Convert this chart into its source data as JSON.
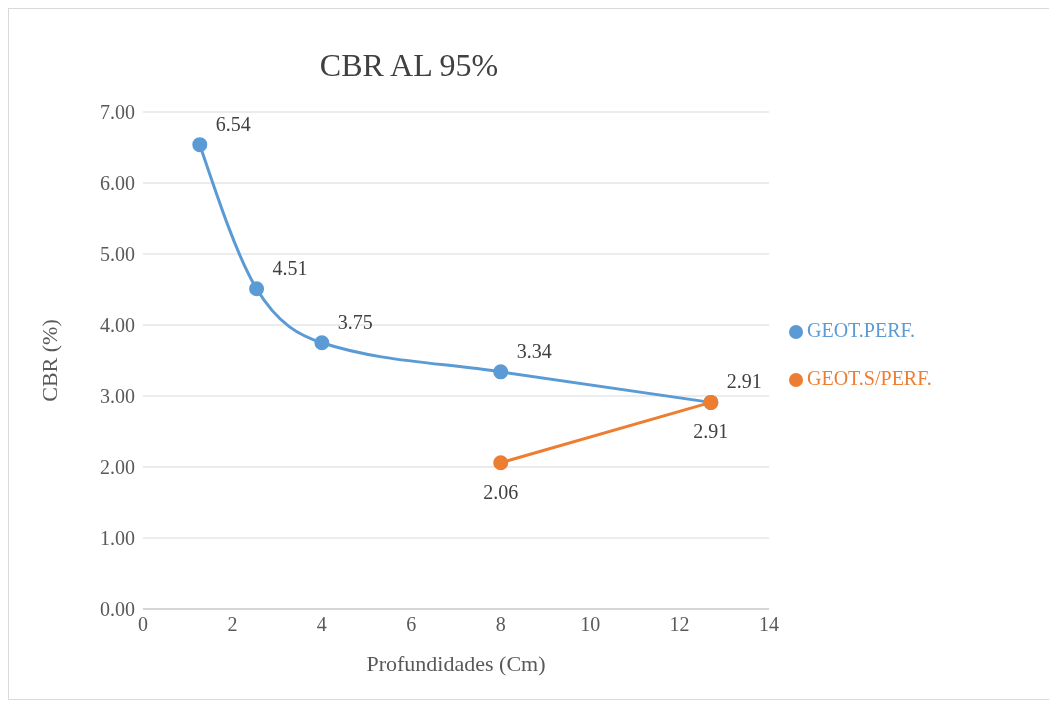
{
  "chart_data": {
    "type": "line",
    "title": "CBR AL 95%",
    "xlabel": "Profundidades (Cm)",
    "ylabel": "CBR (%)",
    "series": [
      {
        "name": "GEOT.PERF.",
        "color": "#5b9bd5",
        "x": [
          1.27,
          2.54,
          4,
          8,
          12.7
        ],
        "values": [
          6.54,
          4.51,
          3.75,
          3.34,
          2.91
        ]
      },
      {
        "name": "GEOT.S/PERF.",
        "color": "#ed7d31",
        "x": [
          8,
          12.7
        ],
        "values": [
          2.06,
          2.91
        ]
      }
    ],
    "xlim": [
      0,
      14
    ],
    "xticks": [
      0,
      2,
      4,
      6,
      8,
      10,
      12,
      14
    ],
    "ylim": [
      0,
      7
    ],
    "yticks": [
      {
        "value": 0,
        "label": "0.00"
      },
      {
        "value": 1,
        "label": "1.00"
      },
      {
        "value": 2,
        "label": "2.00"
      },
      {
        "value": 3,
        "label": "3.00"
      },
      {
        "value": 4,
        "label": "4.00"
      },
      {
        "value": 5,
        "label": "5.00"
      },
      {
        "value": 6,
        "label": "6.00"
      },
      {
        "value": 7,
        "label": "7.00"
      }
    ],
    "grid": "y",
    "legend": "right",
    "marker": "circle",
    "line_style": "solid",
    "data_labels": true
  }
}
